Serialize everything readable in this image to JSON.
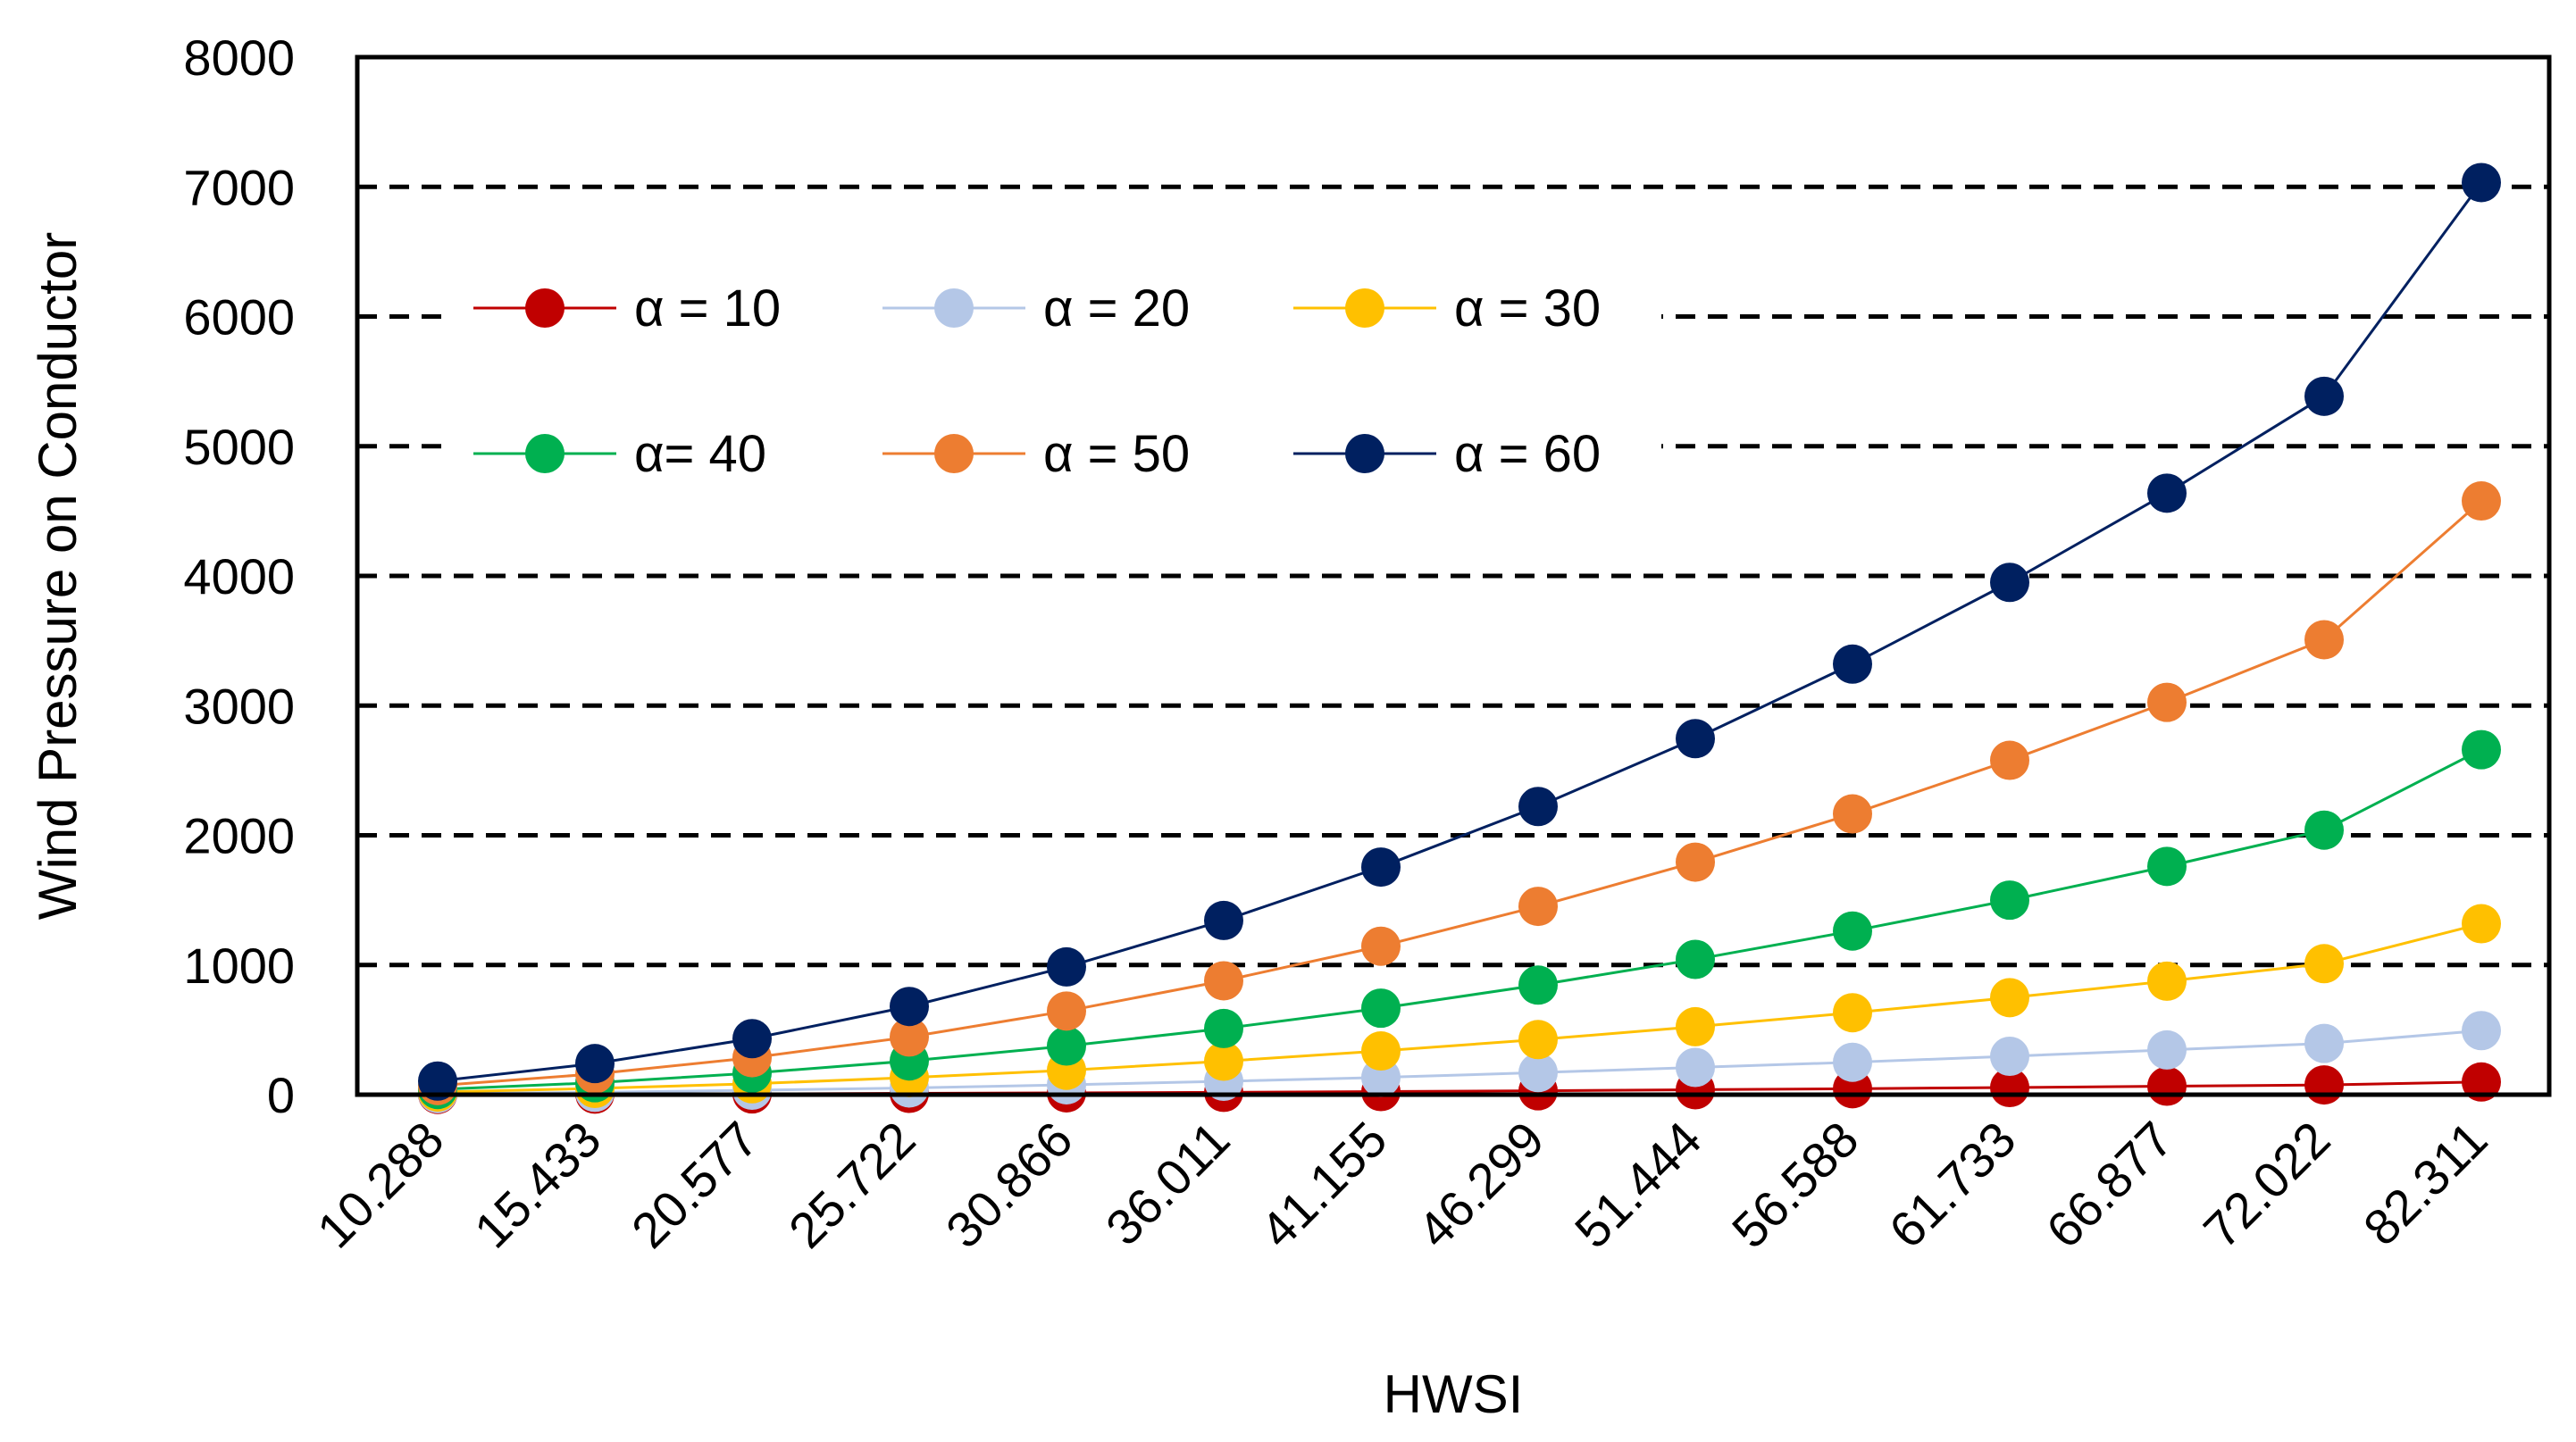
{
  "chart_data": {
    "type": "line",
    "title": "",
    "xlabel": "HWSI",
    "ylabel": "Wind Pressure on Conductor",
    "ylim": [
      0,
      8000
    ],
    "yticks": [
      0,
      1000,
      2000,
      3000,
      4000,
      5000,
      6000,
      7000,
      8000
    ],
    "grid": "horizontal dashed",
    "legend_position": "upper-left, inside plot",
    "categories": [
      "10.288",
      "15.433",
      "20.577",
      "25.722",
      "30.866",
      "36.011",
      "41.155",
      "46.299",
      "51.444",
      "56.588",
      "61.733",
      "66.877",
      "72.022",
      "82.311"
    ],
    "series": [
      {
        "name": "α = 10",
        "color": "#C00000",
        "values": [
          2,
          4,
          6,
          10,
          14,
          18,
          24,
          30,
          38,
          46,
          55,
          65,
          75,
          98
        ]
      },
      {
        "name": "α = 20",
        "color": "#B4C7E7",
        "values": [
          8,
          18,
          34,
          52,
          76,
          103,
          133,
          170,
          210,
          250,
          296,
          345,
          395,
          494
        ]
      },
      {
        "name": "α = 30",
        "color": "#FFC000",
        "values": [
          20,
          48,
          84,
          132,
          188,
          258,
          337,
          425,
          524,
          632,
          748,
          875,
          1010,
          1318
        ]
      },
      {
        "name": "α= 40",
        "color": "#00B050",
        "values": [
          40,
          92,
          166,
          260,
          375,
          510,
          667,
          845,
          1043,
          1262,
          1500,
          1760,
          2040,
          2660
        ]
      },
      {
        "name": "α = 50",
        "color": "#ED7D31",
        "values": [
          70,
          160,
          285,
          445,
          645,
          878,
          1145,
          1452,
          1793,
          2165,
          2578,
          3025,
          3508,
          4578
        ]
      },
      {
        "name": "α = 60",
        "color": "#002060",
        "values": [
          105,
          240,
          432,
          680,
          985,
          1343,
          1755,
          2222,
          2745,
          3320,
          3950,
          4638,
          5385,
          7033
        ]
      }
    ]
  }
}
